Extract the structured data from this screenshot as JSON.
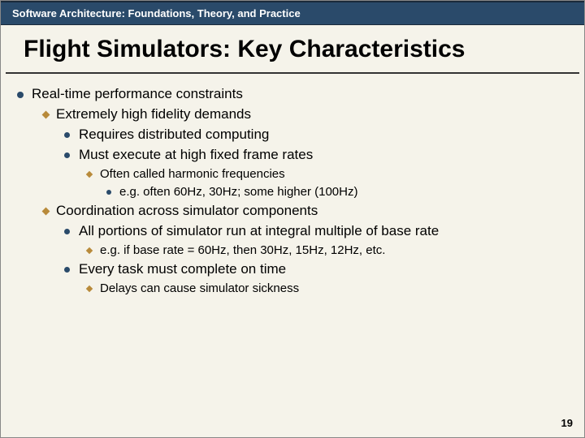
{
  "header": "Software Architecture: Foundations, Theory, and Practice",
  "title": "Flight Simulators: Key Characteristics",
  "b1": "Real-time performance constraints",
  "b1_1": "Extremely high fidelity demands",
  "b1_1_1": "Requires distributed computing",
  "b1_1_2": "Must execute at high fixed frame rates",
  "b1_1_2_1": "Often called harmonic frequencies",
  "b1_1_2_1_1": "e.g. often 60Hz, 30Hz; some higher (100Hz)",
  "b1_2": "Coordination across simulator components",
  "b1_2_1": "All portions of simulator run at integral multiple of base rate",
  "b1_2_1_1": "e.g. if base rate = 60Hz, then 30Hz, 15Hz, 12Hz, etc.",
  "b1_2_2": "Every task must complete on time",
  "b1_2_2_1": "Delays can cause simulator sickness",
  "pageNumber": "19"
}
